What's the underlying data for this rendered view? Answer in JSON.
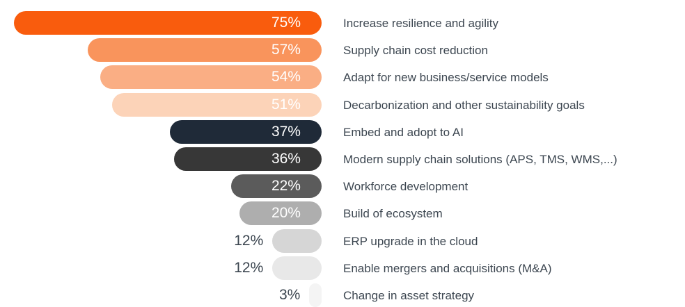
{
  "chart_data": {
    "type": "bar",
    "orientation": "horizontal",
    "title": "",
    "xlabel": "",
    "ylabel": "",
    "xlim": [
      0,
      75
    ],
    "grid": false,
    "legend": false,
    "unit": "%",
    "categories": [
      "Increase resilience and agility",
      "Supply chain cost reduction",
      "Adapt for new business/service models",
      "Decarbonization and other sustainability goals",
      "Embed and adopt to AI",
      "Modern supply chain solutions (APS, TMS, WMS,...)",
      "Workforce development",
      "Build of ecosystem",
      "ERP upgrade in the cloud",
      "Enable mergers and acquisitions (M&A)",
      "Change in asset strategy"
    ],
    "values": [
      75,
      57,
      54,
      51,
      37,
      36,
      22,
      20,
      12,
      12,
      3
    ],
    "value_labels": [
      "75%",
      "57%",
      "54%",
      "51%",
      "37%",
      "36%",
      "22%",
      "20%",
      "12%",
      "12%",
      "3%"
    ],
    "bar_colors": [
      "#F95C0D",
      "#F9945C",
      "#FAAE84",
      "#FCD3B8",
      "#1F2A38",
      "#373737",
      "#5B5B5B",
      "#AEAEAE",
      "#D6D6D6",
      "#E8E8E8",
      "#F4F4F4"
    ],
    "value_label_inside": [
      true,
      true,
      true,
      true,
      true,
      true,
      true,
      true,
      false,
      false,
      false
    ]
  },
  "colors": {
    "background": "#FFFFFF",
    "value_text_inside": "#FFFFFF",
    "value_text_outside": "#3C4650",
    "category_text": "#3C4650"
  }
}
